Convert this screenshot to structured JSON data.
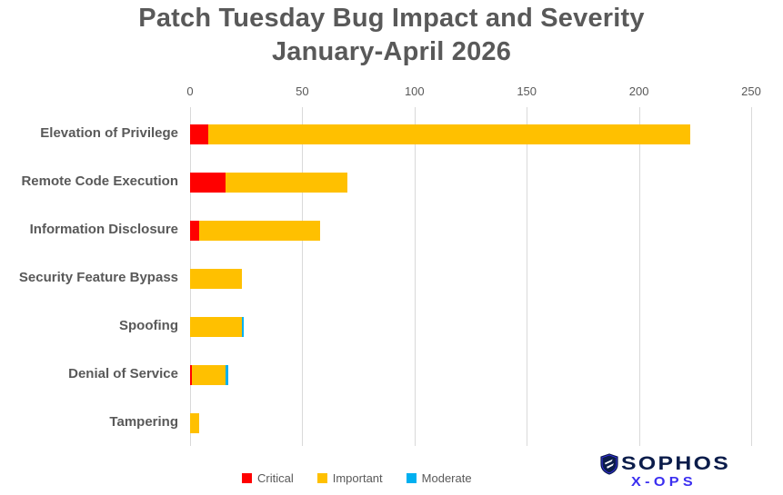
{
  "title": {
    "line1": "Patch Tuesday Bug Impact and Severity",
    "line2": "January-April 2026"
  },
  "chart_data": {
    "type": "bar",
    "orientation": "horizontal",
    "stacked": true,
    "title": "Patch Tuesday Bug Impact and Severity January-April 2026",
    "xlabel": "",
    "ylabel": "",
    "xlim": [
      0,
      250
    ],
    "xticks": [
      0,
      50,
      100,
      150,
      200,
      250
    ],
    "grid": "vertical",
    "legend_position": "bottom",
    "categories": [
      "Elevation of Privilege",
      "Remote Code Execution",
      "Information Disclosure",
      "Security Feature Bypass",
      "Spoofing",
      "Denial of Service",
      "Tampering"
    ],
    "series": [
      {
        "name": "Critical",
        "color": "#FF0000",
        "values": [
          8,
          16,
          4,
          0,
          0,
          1,
          0
        ]
      },
      {
        "name": "Important",
        "color": "#FFC000",
        "values": [
          215,
          54,
          54,
          23,
          23,
          15,
          4
        ]
      },
      {
        "name": "Moderate",
        "color": "#00B0F0",
        "values": [
          0,
          0,
          0,
          0,
          1,
          1,
          0
        ]
      }
    ],
    "totals": [
      223,
      70,
      58,
      23,
      24,
      17,
      4
    ]
  },
  "legend": {
    "items": [
      {
        "label": "Critical",
        "color": "#FF0000"
      },
      {
        "label": "Important",
        "color": "#FFC000"
      },
      {
        "label": "Moderate",
        "color": "#00B0F0"
      }
    ]
  },
  "logo": {
    "brand": "SOPHOS",
    "sub": "X-OPS",
    "brand_color": "#0b1c4a",
    "sub_color": "#3b2ff0"
  },
  "colors": {
    "text": "#595959",
    "gridline": "#d9d9d9",
    "background": "#ffffff"
  }
}
